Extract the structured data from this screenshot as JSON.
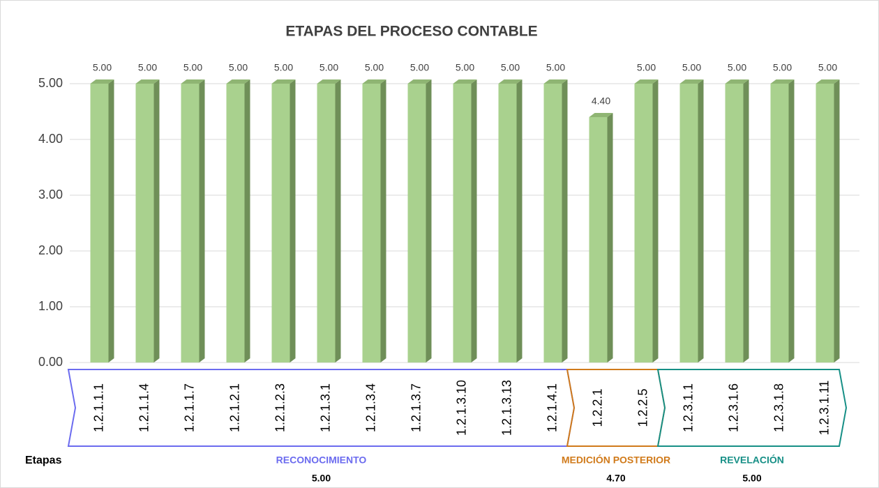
{
  "chart_data": {
    "type": "bar3d",
    "title": "ETAPAS DEL PROCESO CONTABLE",
    "categories": [
      "1.2.1.1.1",
      "1.2.1.1.4",
      "1.2.1.1.7",
      "1.2.1.2.1",
      "1.2.1.2.3",
      "1.2.1.3.1",
      "1.2.1.3.4",
      "1.2.1.3.7",
      "1.2.1.3.10",
      "1.2.1.3.13",
      "1.2.1.4.1",
      "1.2.2.1",
      "1.2.2.5",
      "1.2.3.1.1",
      "1.2.3.1.6",
      "1.2.3.1.8",
      "1.2.3.1.11"
    ],
    "values": [
      5,
      5,
      5,
      5,
      5,
      5,
      5,
      5,
      5,
      5,
      5,
      4.4,
      5,
      5,
      5,
      5,
      5
    ],
    "value_labels": [
      "5.00",
      "5.00",
      "5.00",
      "5.00",
      "5.00",
      "5.00",
      "5.00",
      "5.00",
      "5.00",
      "5.00",
      "5.00",
      "4.40",
      "5.00",
      "5.00",
      "5.00",
      "5.00",
      "5.00"
    ],
    "color": "#a9d18e",
    "ylim": [
      0,
      5
    ],
    "yticks": [
      {
        "value": 0,
        "label": "0.00"
      },
      {
        "value": 1,
        "label": "1.00"
      },
      {
        "value": 2,
        "label": "2.00"
      },
      {
        "value": 3,
        "label": "3.00"
      },
      {
        "value": 4,
        "label": "4.00"
      },
      {
        "value": 5,
        "label": "5.00"
      }
    ],
    "grid": true,
    "group_axis_label": "Etapas",
    "groups": [
      {
        "name": "RECONOCIMIENTO",
        "size": 11,
        "color": "#6b6bef",
        "score": 5,
        "score_label": "5.00"
      },
      {
        "name": "MEDICIÓN POSTERIOR",
        "size": 2,
        "color": "#d07a1a",
        "score": 4.7,
        "score_label": "4.70"
      },
      {
        "name": "REVELACIÓN",
        "size": 4,
        "color": "#168f86",
        "score": 5,
        "score_label": "5.00"
      }
    ]
  }
}
